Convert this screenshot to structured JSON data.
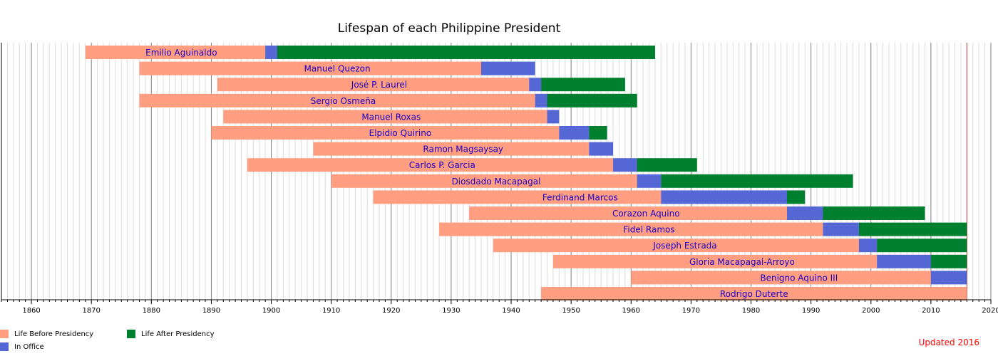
{
  "chart_data": {
    "type": "timeline",
    "title": "Lifespan of each Philippine President",
    "xlim": [
      1855,
      2020
    ],
    "xticks": [
      1860,
      1870,
      1880,
      1890,
      1900,
      1910,
      1920,
      1930,
      1940,
      1950,
      1960,
      1970,
      1980,
      1990,
      2000,
      2010,
      2020
    ],
    "grid": true,
    "legend_position": "bottom-left",
    "series": [
      {
        "name": "Life Before Presidency",
        "color": "#ff9e80"
      },
      {
        "name": "In Office",
        "color": "#5566d5"
      },
      {
        "name": "Life After Presidency",
        "color": "#007f2e"
      }
    ],
    "presidents": [
      {
        "name": "Emilio Aguinaldo",
        "born": 1869,
        "office_start": 1899,
        "office_end": 1901,
        "died": 1964
      },
      {
        "name": "Manuel Quezon",
        "born": 1878,
        "office_start": 1935,
        "office_end": 1944,
        "died": 1944
      },
      {
        "name": "José P. Laurel",
        "born": 1891,
        "office_start": 1943,
        "office_end": 1945,
        "died": 1959
      },
      {
        "name": "Sergio Osmeña",
        "born": 1878,
        "office_start": 1944,
        "office_end": 1946,
        "died": 1961
      },
      {
        "name": "Manuel Roxas",
        "born": 1892,
        "office_start": 1946,
        "office_end": 1948,
        "died": 1948
      },
      {
        "name": "Elpidio Quirino",
        "born": 1890,
        "office_start": 1948,
        "office_end": 1953,
        "died": 1956
      },
      {
        "name": "Ramon Magsaysay",
        "born": 1907,
        "office_start": 1953,
        "office_end": 1957,
        "died": 1957
      },
      {
        "name": "Carlos P. Garcia",
        "born": 1896,
        "office_start": 1957,
        "office_end": 1961,
        "died": 1971
      },
      {
        "name": "Diosdado Macapagal",
        "born": 1910,
        "office_start": 1961,
        "office_end": 1965,
        "died": 1997
      },
      {
        "name": "Ferdinand Marcos",
        "born": 1917,
        "office_start": 1965,
        "office_end": 1986,
        "died": 1989
      },
      {
        "name": "Corazon Aquino",
        "born": 1933,
        "office_start": 1986,
        "office_end": 1992,
        "died": 2009
      },
      {
        "name": "Fidel Ramos",
        "born": 1928,
        "office_start": 1992,
        "office_end": 1998,
        "died": 2016
      },
      {
        "name": "Joseph Estrada",
        "born": 1937,
        "office_start": 1998,
        "office_end": 2001,
        "died": 2016
      },
      {
        "name": "Gloria Macapagal-Arroyo",
        "born": 1947,
        "office_start": 2001,
        "office_end": 2010,
        "died": 2016
      },
      {
        "name": "Benigno Aquino III",
        "born": 1960,
        "office_start": 2010,
        "office_end": 2016,
        "died": 2016
      },
      {
        "name": "Rodrigo Duterte",
        "born": 1945,
        "office_start": 2016,
        "office_end": 2016,
        "died": 2016
      }
    ],
    "current_year": 2016
  },
  "footer": {
    "updated": "Updated 2016"
  }
}
